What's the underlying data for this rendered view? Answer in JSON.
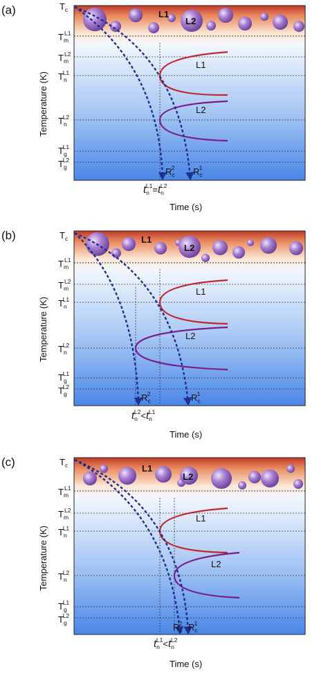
{
  "colors": {
    "top": "#c0392b",
    "top_mid": "#f2c9a8",
    "bottom": "#4a86e8",
    "curve_l1": "#c0262e",
    "curve_l2": "#7a1c8a",
    "path": "#1e2f8f",
    "guide": "#333333",
    "bubble": "#8a5cb0"
  },
  "axes": {
    "ylabel": "Temperature (K)",
    "xlabel": "Time (s)"
  },
  "temps": {
    "tc": "T",
    "tc_sub": "c",
    "t_base": "T",
    "tm_sup": "L1",
    "tm2_sup": "L2",
    "tn1_sup": "L1",
    "tn2_sup": "L2",
    "tg1_sup": "L1",
    "tg2_sup": "L2",
    "m": "m",
    "n": "n",
    "g": "g"
  },
  "phase_labels": {
    "l1": "L1",
    "l2": "L2"
  },
  "rates": {
    "r": "R",
    "sub": "c",
    "sup1": "1",
    "sup2": "2"
  },
  "panels": [
    {
      "label": "(a)",
      "ttext": [
        {
          "t": "t"
        },
        {
          "t": "n"
        },
        {
          "t": "L1"
        },
        {
          "t": "="
        },
        {
          "t": "t"
        },
        {
          "t": "n"
        },
        {
          "t": "L2"
        }
      ]
    },
    {
      "label": "(b)",
      "ttext": [
        {
          "t": "t"
        },
        {
          "t": "n"
        },
        {
          "t": "L2"
        },
        {
          "t": "<"
        },
        {
          "t": "t"
        },
        {
          "t": "n"
        },
        {
          "t": "L1"
        }
      ]
    },
    {
      "label": "(c)",
      "ttext": [
        {
          "t": "t"
        },
        {
          "t": "n"
        },
        {
          "t": "L1"
        },
        {
          "t": "<"
        },
        {
          "t": "t"
        },
        {
          "t": "n"
        },
        {
          "t": "L2"
        }
      ]
    }
  ]
}
